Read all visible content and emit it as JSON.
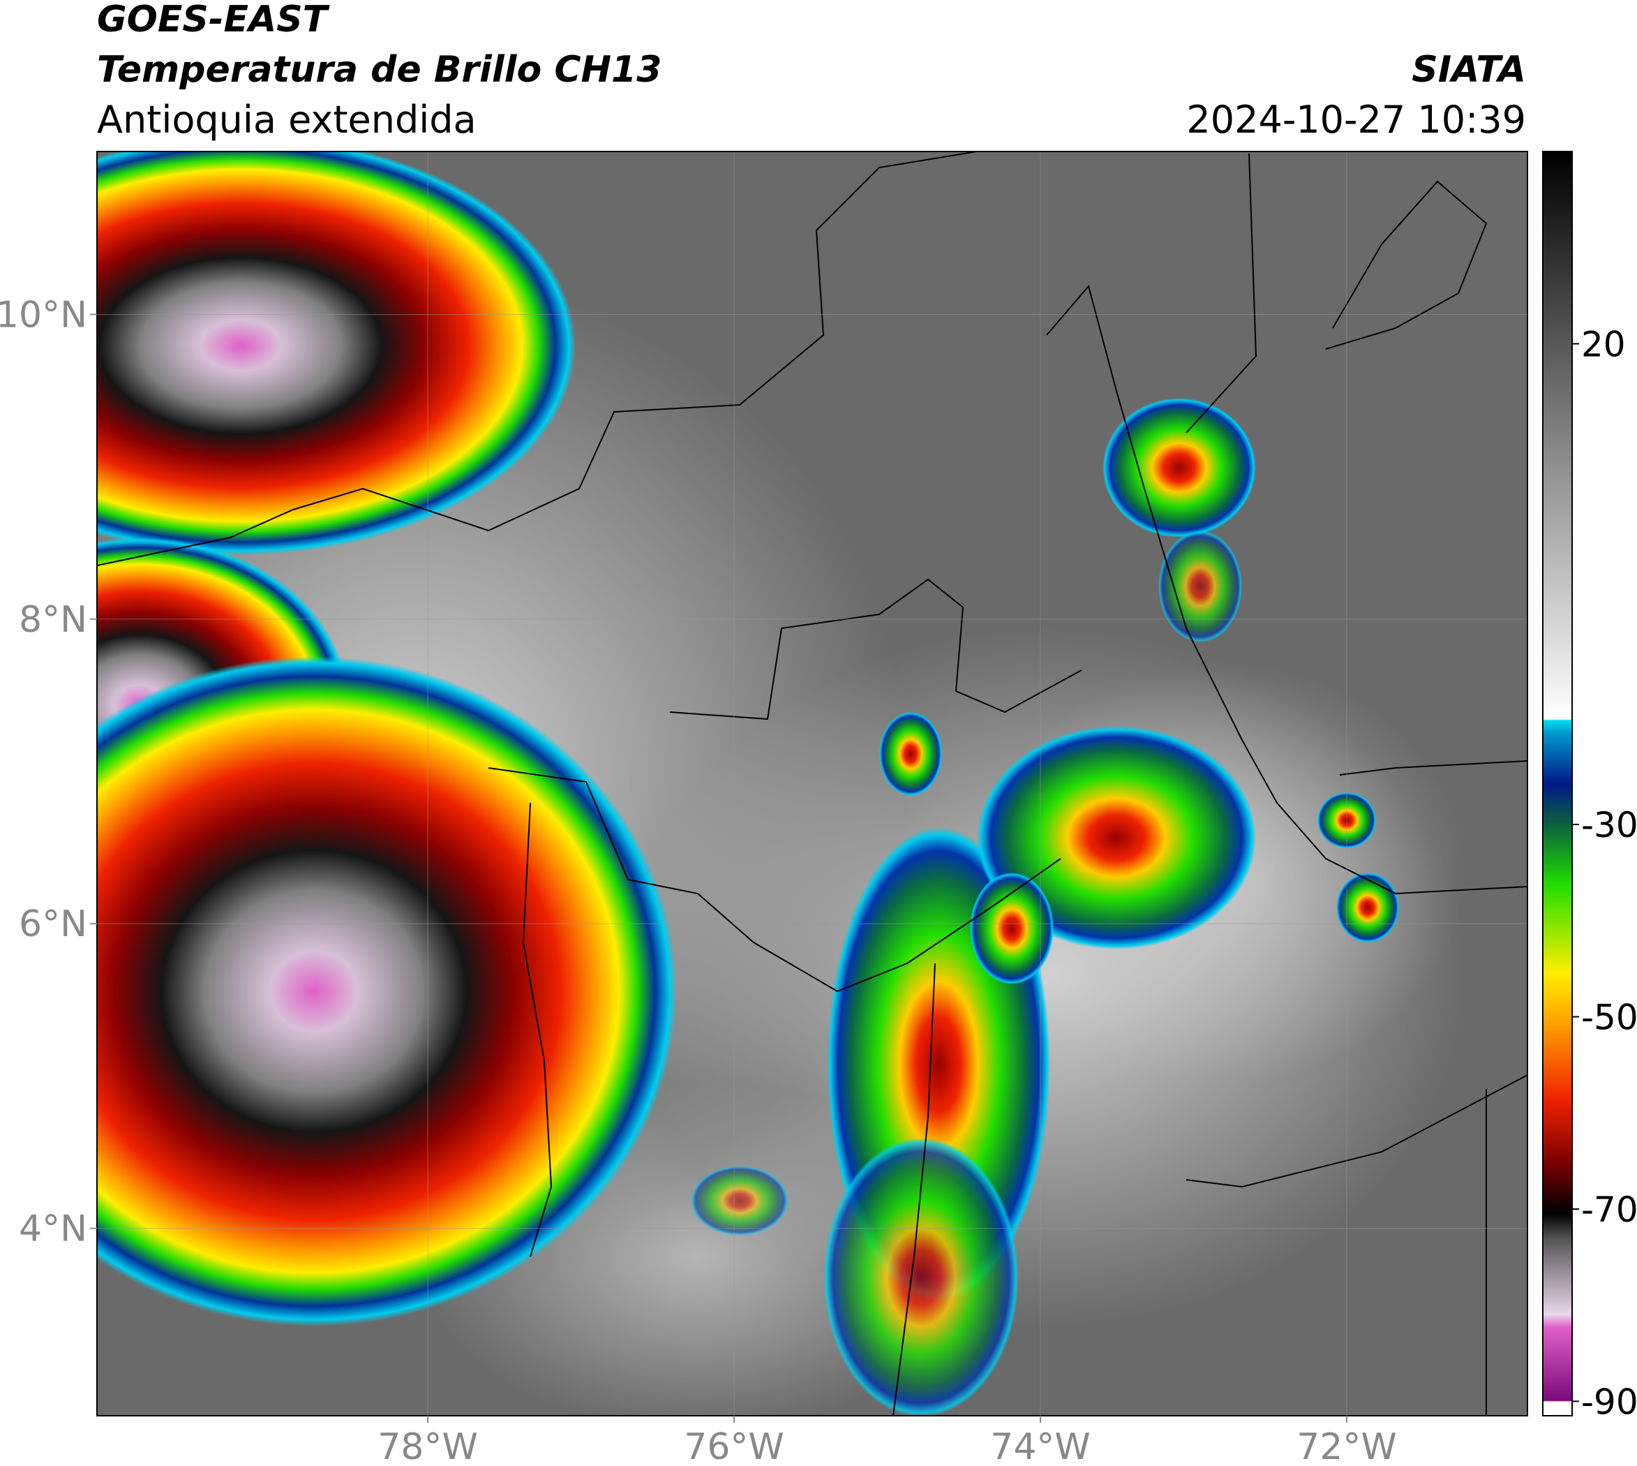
{
  "header": {
    "title": "GOES-EAST",
    "subtitle": "Temperatura de Brillo CH13",
    "region": "Antioquia extendida",
    "source": "SIATA",
    "datetime": "2024-10-27 10:39"
  },
  "map": {
    "xlim": [
      -80.16,
      -70.82
    ],
    "ylim": [
      2.77,
      11.07
    ],
    "xticks": [
      {
        "value": -78,
        "label": "78°W"
      },
      {
        "value": -76,
        "label": "76°W"
      },
      {
        "value": -74,
        "label": "74°W"
      },
      {
        "value": -72,
        "label": "72°W"
      }
    ],
    "yticks": [
      {
        "value": 4,
        "label": "4°N"
      },
      {
        "value": 6,
        "label": "6°N"
      },
      {
        "value": 8,
        "label": "8°N"
      },
      {
        "value": 10,
        "label": "10°N"
      }
    ],
    "grid": true
  },
  "colorbar": {
    "lim": [
      -91.5,
      40
    ],
    "ticks": [
      20,
      -30,
      -50,
      -70,
      -90
    ]
  }
}
